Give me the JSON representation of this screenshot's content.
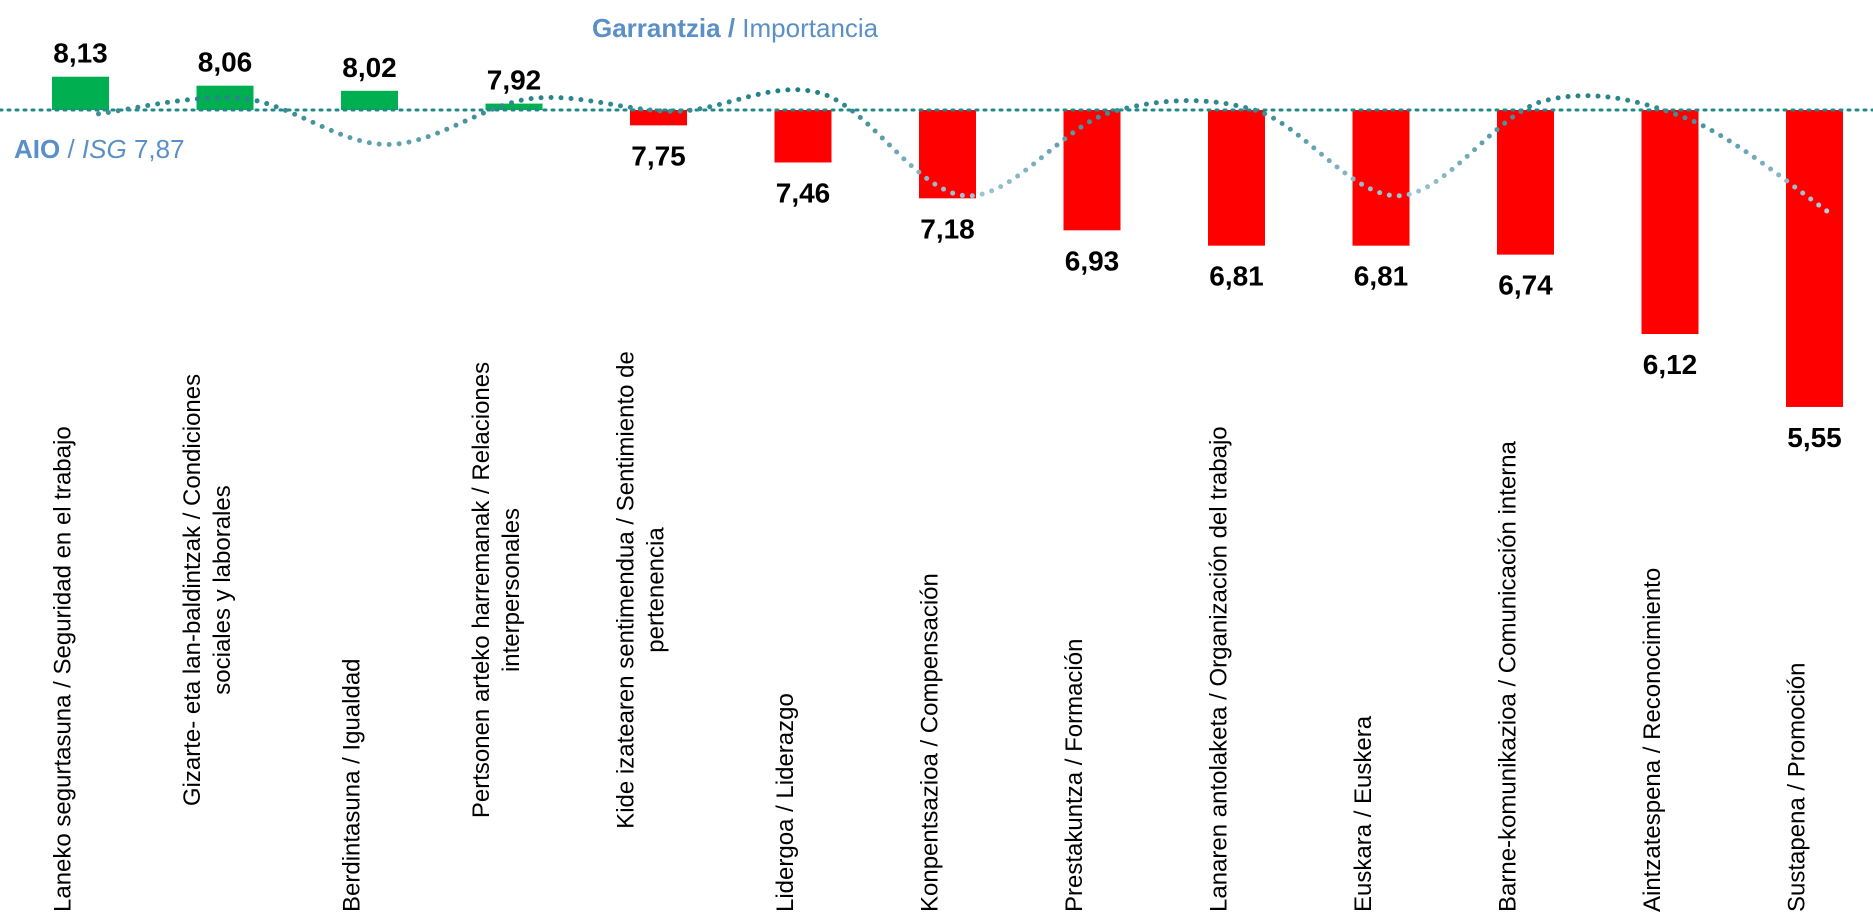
{
  "chart_data": {
    "type": "bar",
    "title": "",
    "legend": {
      "importance_label_bold": "Garrantzia /",
      "importance_label": "Importancia",
      "average_label_bold": "AIO",
      "average_label_sep": " / ",
      "average_label_ital": "ISG",
      "average_value_text": "7,87"
    },
    "baseline": 7.87,
    "ylim": [
      5.3,
      8.3
    ],
    "categories": [
      [
        "Laneko segurtasuna / Seguridad en el trabajo"
      ],
      [
        "Gizarte- eta lan-baldintzak / Condiciones",
        "sociales y laborales"
      ],
      [
        "Berdintasuna / Igualdad"
      ],
      [
        "Pertsonen arteko harremanak / Relaciones",
        "interpersonales"
      ],
      [
        "Kide izatearen sentimendua / Sentimiento de",
        "pertenencia"
      ],
      [
        "Lidergoa / Liderazgo"
      ],
      [
        "Konpentsazioa / Compensación"
      ],
      [
        "Prestakuntza / Formación"
      ],
      [
        "Lanaren antolaketa / Organización del trabajo"
      ],
      [
        "Euskara / Euskera"
      ],
      [
        "Barne-komunikazioa / Comunicación interna"
      ],
      [
        "Aintzatespena / Reconocimiento"
      ],
      [
        "Sustapena / Promoción"
      ]
    ],
    "values": [
      8.13,
      8.06,
      8.02,
      7.92,
      7.75,
      7.46,
      7.18,
      6.93,
      6.81,
      6.81,
      6.74,
      6.12,
      5.55
    ],
    "value_labels": [
      "8,13",
      "8,06",
      "8,02",
      "7,92",
      "7,75",
      "7,46",
      "7,18",
      "6,93",
      "6,81",
      "6,81",
      "6,74",
      "6,12",
      "5,55"
    ],
    "importance_curve": {
      "style": "dotted",
      "values": [
        7.84,
        7.96,
        7.6,
        7.96,
        7.86,
        8.0,
        7.2,
        7.85,
        7.87,
        7.2,
        7.94,
        7.8,
        7.05
      ]
    },
    "colors": {
      "above": "#00b050",
      "below": "#ff0000",
      "baseline": "#1f8a8a",
      "curve": "#2e8b8b",
      "legend": "#5b8fc7"
    }
  }
}
